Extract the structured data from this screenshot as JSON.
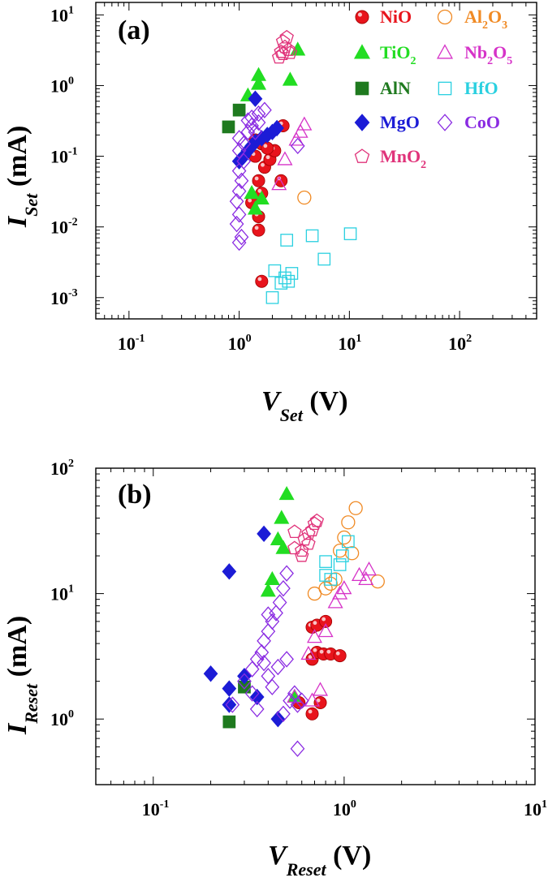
{
  "chart_data": [
    {
      "type": "scatter",
      "panel_label": "(a)",
      "xscale": "log",
      "yscale": "log",
      "xlim": [
        0.05,
        500
      ],
      "ylim": [
        0.0005,
        15
      ],
      "xticks": [
        {
          "base": "10",
          "exp": "-1"
        },
        {
          "base": "10",
          "exp": "0"
        },
        {
          "base": "10",
          "exp": "1"
        },
        {
          "base": "10",
          "exp": "2"
        }
      ],
      "yticks": [
        {
          "base": "10",
          "exp": "-3"
        },
        {
          "base": "10",
          "exp": "-2"
        },
        {
          "base": "10",
          "exp": "-1"
        },
        {
          "base": "10",
          "exp": "0"
        },
        {
          "base": "10",
          "exp": "1"
        }
      ],
      "xlabel": {
        "main": "V",
        "sub": "Set",
        "unit": " (V)"
      },
      "ylabel": {
        "main": "I",
        "sub": "Set",
        "unit": " (mA)"
      },
      "legend": [
        {
          "name": "NiO",
          "sub": "",
          "tail": "",
          "marker": "sphere",
          "color": "#e8141c",
          "filled": true
        },
        {
          "name": "Al",
          "sub": "2",
          "tail": "O",
          "sub2": "3",
          "marker": "circle",
          "color": "#f08a24",
          "filled": false
        },
        {
          "name": "TiO",
          "sub": "2",
          "tail": "",
          "marker": "triangle",
          "color": "#22dd22",
          "filled": true
        },
        {
          "name": "Nb",
          "sub": "2",
          "tail": "O",
          "sub2": "5",
          "marker": "triangle",
          "color": "#d633c8",
          "filled": false
        },
        {
          "name": "AlN",
          "sub": "",
          "tail": "",
          "marker": "square",
          "color": "#1f7a1f",
          "filled": true
        },
        {
          "name": "HfO",
          "sub": "",
          "tail": "",
          "marker": "square",
          "color": "#2ad0e0",
          "filled": false
        },
        {
          "name": "MgO",
          "sub": "",
          "tail": "",
          "marker": "diamond",
          "color": "#1c1cd6",
          "filled": true
        },
        {
          "name": "CoO",
          "sub": "",
          "tail": "",
          "marker": "diamond",
          "color": "#8a2be2",
          "filled": false
        },
        {
          "name": "MnO",
          "sub": "2",
          "tail": "",
          "marker": "pentagon",
          "color": "#e0337a",
          "filled": false
        }
      ],
      "series": [
        {
          "name": "NiO",
          "points": [
            [
              1.5,
              0.009
            ],
            [
              1.5,
              0.014
            ],
            [
              1.3,
              0.022
            ],
            [
              1.6,
              0.03
            ],
            [
              1.5,
              0.045
            ],
            [
              2.4,
              0.045
            ],
            [
              1.7,
              0.07
            ],
            [
              1.9,
              0.09
            ],
            [
              1.4,
              0.1
            ],
            [
              2.1,
              0.12
            ],
            [
              1.6,
              0.15
            ],
            [
              1.8,
              0.13
            ],
            [
              1.4,
              0.17
            ],
            [
              2.5,
              0.27
            ],
            [
              1.6,
              0.0017
            ]
          ]
        },
        {
          "name": "Al2O3",
          "points": [
            [
              3.9,
              0.026
            ]
          ]
        },
        {
          "name": "TiO2",
          "points": [
            [
              1.4,
              0.018
            ],
            [
              1.6,
              0.025
            ],
            [
              1.3,
              0.03
            ],
            [
              1.2,
              0.72
            ],
            [
              1.5,
              1.05
            ],
            [
              1.5,
              1.4
            ],
            [
              2.9,
              1.2
            ],
            [
              3.4,
              3.2
            ]
          ]
        },
        {
          "name": "Nb2O5",
          "points": [
            [
              2.3,
              0.04
            ],
            [
              2.6,
              0.09
            ],
            [
              3.3,
              0.17
            ],
            [
              3.6,
              0.22
            ],
            [
              3.9,
              0.28
            ]
          ]
        },
        {
          "name": "AlN",
          "points": [
            [
              0.8,
              0.26
            ],
            [
              1.0,
              0.45
            ]
          ]
        },
        {
          "name": "HfO",
          "points": [
            [
              2.0,
              0.001
            ],
            [
              2.1,
              0.0024
            ],
            [
              2.4,
              0.0016
            ],
            [
              2.6,
              0.0019
            ],
            [
              2.8,
              0.0017
            ],
            [
              3.0,
              0.0022
            ],
            [
              2.7,
              0.0065
            ],
            [
              4.6,
              0.0075
            ],
            [
              5.9,
              0.0035
            ],
            [
              10.2,
              0.008
            ]
          ]
        },
        {
          "name": "MgO",
          "points": [
            [
              1.0,
              0.085
            ],
            [
              1.1,
              0.1
            ],
            [
              1.2,
              0.12
            ],
            [
              1.3,
              0.14
            ],
            [
              1.4,
              0.16
            ],
            [
              1.6,
              0.18
            ],
            [
              1.8,
              0.2
            ],
            [
              2.0,
              0.22
            ],
            [
              2.2,
              0.25
            ],
            [
              1.4,
              0.65
            ]
          ]
        },
        {
          "name": "CoO",
          "points": [
            [
              1.0,
              0.006
            ],
            [
              1.05,
              0.0072
            ],
            [
              0.95,
              0.011
            ],
            [
              1.0,
              0.015
            ],
            [
              0.95,
              0.023
            ],
            [
              1.0,
              0.032
            ],
            [
              1.05,
              0.045
            ],
            [
              1.0,
              0.062
            ],
            [
              1.1,
              0.085
            ],
            [
              1.0,
              0.12
            ],
            [
              1.1,
              0.15
            ],
            [
              1.0,
              0.18
            ],
            [
              1.2,
              0.22
            ],
            [
              1.3,
              0.27
            ],
            [
              1.5,
              0.3
            ],
            [
              1.3,
              0.35
            ],
            [
              1.5,
              0.4
            ],
            [
              1.7,
              0.45
            ],
            [
              1.2,
              0.32
            ],
            [
              1.4,
              0.22
            ],
            [
              3.4,
              0.14
            ]
          ]
        },
        {
          "name": "MnO2",
          "points": [
            [
              2.4,
              3.0
            ],
            [
              2.6,
              3.5
            ],
            [
              2.8,
              3.2
            ],
            [
              2.3,
              2.5
            ],
            [
              2.5,
              4.2
            ],
            [
              2.7,
              4.8
            ],
            [
              2.5,
              2.8
            ],
            [
              2.9,
              2.9
            ]
          ]
        }
      ]
    },
    {
      "type": "scatter",
      "panel_label": "(b)",
      "xscale": "log",
      "yscale": "log",
      "xlim": [
        0.05,
        10
      ],
      "ylim": [
        0.3,
        100
      ],
      "xticks": [
        {
          "base": "10",
          "exp": "-1"
        },
        {
          "base": "10",
          "exp": "0"
        },
        {
          "base": "10",
          "exp": "1"
        }
      ],
      "yticks": [
        {
          "base": "10",
          "exp": "0"
        },
        {
          "base": "10",
          "exp": "1"
        },
        {
          "base": "10",
          "exp": "2"
        }
      ],
      "xlabel": {
        "main": "V",
        "sub": "Reset",
        "unit": " (V)"
      },
      "ylabel": {
        "main": "I",
        "sub": "Reset",
        "unit": " (mA)"
      },
      "series": [
        {
          "name": "NiO",
          "points": [
            [
              0.58,
              1.35
            ],
            [
              0.68,
              1.1
            ],
            [
              0.75,
              1.35
            ],
            [
              0.68,
              3.0
            ],
            [
              0.72,
              3.4
            ],
            [
              0.78,
              3.3
            ],
            [
              0.85,
              3.3
            ],
            [
              0.95,
              3.2
            ],
            [
              0.68,
              5.4
            ],
            [
              0.72,
              5.6
            ],
            [
              0.8,
              6.0
            ]
          ]
        },
        {
          "name": "Al2O3",
          "points": [
            [
              0.7,
              10.0
            ],
            [
              0.8,
              11.0
            ],
            [
              0.85,
              12.0
            ],
            [
              0.9,
              13.0
            ],
            [
              0.95,
              22.0
            ],
            [
              1.0,
              28.0
            ],
            [
              1.05,
              37.0
            ],
            [
              1.15,
              48.0
            ],
            [
              1.1,
              21.0
            ],
            [
              1.5,
              12.5
            ]
          ]
        },
        {
          "name": "TiO2",
          "points": [
            [
              0.4,
              10.5
            ],
            [
              0.42,
              13.0
            ],
            [
              0.45,
              27.0
            ],
            [
              0.47,
              40.0
            ],
            [
              0.5,
              62.0
            ],
            [
              0.48,
              23.0
            ],
            [
              0.55,
              1.5
            ]
          ]
        },
        {
          "name": "Nb2O5",
          "points": [
            [
              0.55,
              1.5
            ],
            [
              0.68,
              1.4
            ],
            [
              0.75,
              1.7
            ],
            [
              0.8,
              5.0
            ],
            [
              0.9,
              8.5
            ],
            [
              0.95,
              10.0
            ],
            [
              1.0,
              11.0
            ],
            [
              1.2,
              14.0
            ],
            [
              1.35,
              15.5
            ],
            [
              1.3,
              13.0
            ],
            [
              0.7,
              4.5
            ],
            [
              0.65,
              3.3
            ]
          ]
        },
        {
          "name": "AlN",
          "points": [
            [
              0.25,
              0.95
            ],
            [
              0.3,
              1.8
            ]
          ]
        },
        {
          "name": "HfO",
          "points": [
            [
              0.8,
              14.0
            ],
            [
              0.85,
              13.0
            ],
            [
              0.95,
              17.0
            ],
            [
              0.98,
              20.0
            ],
            [
              1.05,
              26.0
            ],
            [
              0.8,
              18.0
            ]
          ]
        },
        {
          "name": "MgO",
          "points": [
            [
              0.2,
              2.3
            ],
            [
              0.25,
              1.3
            ],
            [
              0.25,
              1.75
            ],
            [
              0.3,
              2.2
            ],
            [
              0.35,
              1.5
            ],
            [
              0.45,
              1.0
            ],
            [
              0.38,
              30.0
            ],
            [
              0.25,
              15.0
            ]
          ]
        },
        {
          "name": "CoO",
          "points": [
            [
              0.26,
              1.3
            ],
            [
              0.3,
              2.0
            ],
            [
              0.33,
              2.5
            ],
            [
              0.35,
              3.0
            ],
            [
              0.37,
              3.4
            ],
            [
              0.4,
              2.2
            ],
            [
              0.42,
              1.8
            ],
            [
              0.45,
              2.6
            ],
            [
              0.5,
              3.0
            ],
            [
              0.55,
              1.6
            ],
            [
              0.57,
              1.3
            ],
            [
              0.6,
              1.4
            ],
            [
              0.38,
              4.2
            ],
            [
              0.4,
              5.0
            ],
            [
              0.42,
              6.0
            ],
            [
              0.44,
              7.0
            ],
            [
              0.46,
              8.5
            ],
            [
              0.48,
              11.0
            ],
            [
              0.5,
              14.5
            ],
            [
              0.4,
              6.8
            ],
            [
              0.38,
              2.8
            ],
            [
              0.33,
              1.6
            ],
            [
              0.35,
              1.2
            ],
            [
              0.48,
              1.1
            ],
            [
              0.52,
              1.4
            ],
            [
              0.57,
              0.58
            ]
          ]
        },
        {
          "name": "MnO2",
          "points": [
            [
              0.55,
              23.0
            ],
            [
              0.6,
              22.0
            ],
            [
              0.62,
              27.0
            ],
            [
              0.65,
              30.0
            ],
            [
              0.68,
              32.0
            ],
            [
              0.7,
              36.0
            ],
            [
              0.72,
              38.0
            ],
            [
              0.65,
              25.0
            ],
            [
              0.6,
              20.0
            ],
            [
              0.55,
              31.0
            ]
          ]
        }
      ]
    }
  ]
}
